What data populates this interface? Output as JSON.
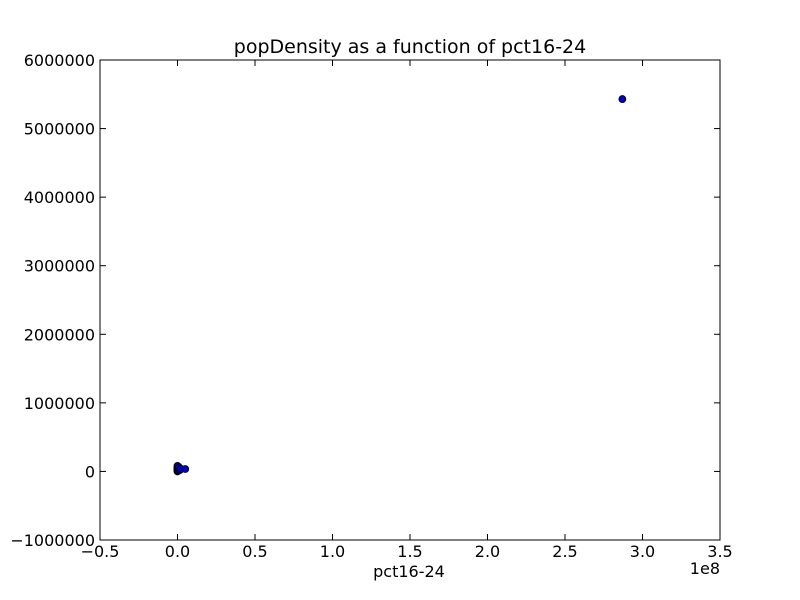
{
  "chart_data": {
    "type": "scatter",
    "title": "popDensity as a function of pct16-24",
    "xlabel": "pct16-24",
    "ylabel": "",
    "x_offset_label": "1e8",
    "xlim": [
      -0.5,
      3.5
    ],
    "ylim": [
      -1000000,
      6000000
    ],
    "x_ticks": [
      -0.5,
      0.0,
      0.5,
      1.0,
      1.5,
      2.0,
      2.5,
      3.0,
      3.5
    ],
    "x_tick_labels": [
      "−0.5",
      "0.0",
      "0.5",
      "1.0",
      "1.5",
      "2.0",
      "2.5",
      "3.0",
      "3.5"
    ],
    "y_ticks": [
      -1000000,
      0,
      1000000,
      2000000,
      3000000,
      4000000,
      5000000,
      6000000
    ],
    "y_tick_labels": [
      "−1000000",
      "0",
      "1000000",
      "2000000",
      "3000000",
      "4000000",
      "5000000",
      "6000000"
    ],
    "grid": false,
    "marker_color": "#0000cc",
    "marker_edge": "#000000",
    "points": [
      {
        "x": 0.0,
        "y": 0
      },
      {
        "x": 0.0,
        "y": 10000
      },
      {
        "x": 0.0,
        "y": 25000
      },
      {
        "x": 0.0,
        "y": 45000
      },
      {
        "x": 0.0,
        "y": 65000
      },
      {
        "x": 0.0,
        "y": 80000
      },
      {
        "x": 0.005,
        "y": 15000
      },
      {
        "x": 0.005,
        "y": 50000
      },
      {
        "x": 0.01,
        "y": 30000
      },
      {
        "x": 0.01,
        "y": 60000
      },
      {
        "x": 0.015,
        "y": 20000
      },
      {
        "x": 0.02,
        "y": 40000
      },
      {
        "x": 0.05,
        "y": 35000
      },
      {
        "x": 2.87,
        "y": 5430000
      }
    ]
  }
}
